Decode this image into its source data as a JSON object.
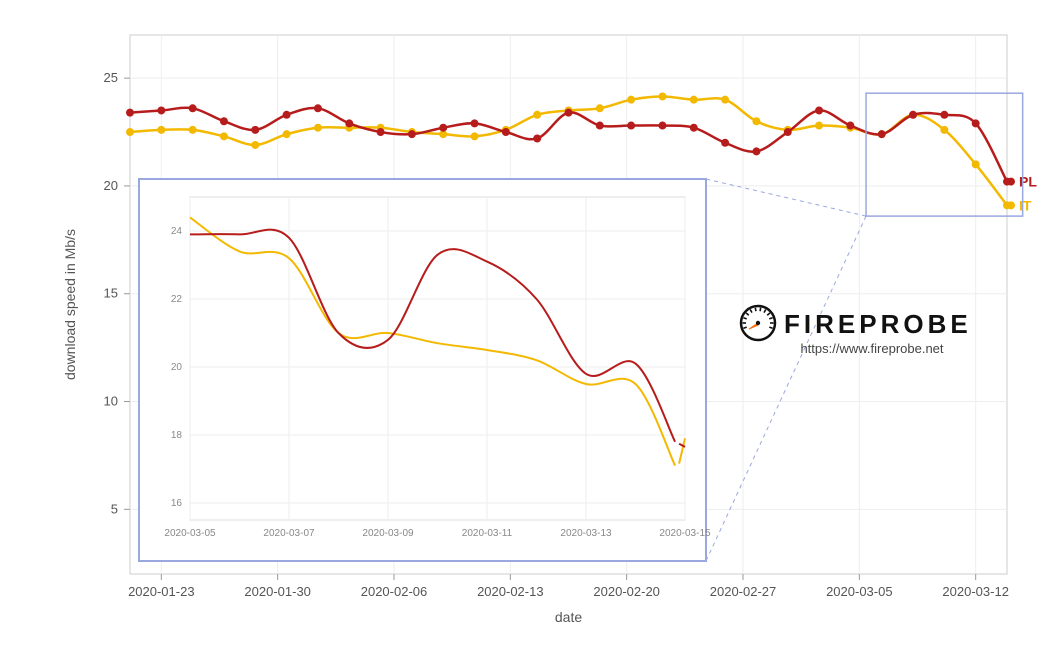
{
  "main_chart": {
    "type": "line",
    "background_color": "#ffffff",
    "plot_border_color": "#cccccc",
    "grid_color": "#eeeeee",
    "axis_text_color": "#555555",
    "ylabel": "download speed in Mb/s",
    "xlabel": "date",
    "label_fontsize": 14,
    "tick_fontsize": 13,
    "ylim": [
      2,
      27
    ],
    "yticks": [
      5,
      10,
      15,
      20,
      25
    ],
    "x_categories": [
      "2020-01-23",
      "2020-01-30",
      "2020-02-06",
      "2020-02-13",
      "2020-02-20",
      "2020-02-27",
      "2020-03-05",
      "2020-03-12"
    ],
    "x_index_range": [
      0,
      28
    ],
    "series": {
      "PL": {
        "label": "PL",
        "color": "#b71c1c",
        "marker": "circle",
        "marker_size": 4,
        "line_width": 2.5,
        "x": [
          0,
          1,
          2,
          3,
          4,
          5,
          6,
          7,
          8,
          9,
          10,
          11,
          12,
          13,
          14,
          15,
          16,
          17,
          18,
          19,
          20,
          21,
          22,
          23,
          24,
          25,
          26,
          27,
          28
        ],
        "y": [
          23.4,
          23.5,
          23.6,
          23.0,
          22.6,
          23.3,
          23.6,
          22.9,
          22.5,
          22.4,
          22.7,
          22.9,
          22.5,
          22.2,
          23.4,
          22.8,
          22.8,
          22.8,
          22.7,
          22.0,
          21.6,
          22.5,
          23.5,
          22.8,
          22.4,
          23.3,
          23.3,
          22.9,
          20.2
        ]
      },
      "IT": {
        "label": "IT",
        "color": "#f3b900",
        "marker": "circle",
        "marker_size": 4,
        "line_width": 2.5,
        "x": [
          0,
          1,
          2,
          3,
          4,
          5,
          6,
          7,
          8,
          9,
          10,
          11,
          12,
          13,
          14,
          15,
          16,
          17,
          18,
          19,
          20,
          21,
          22,
          23,
          24,
          25,
          26,
          27,
          28
        ],
        "y": [
          22.5,
          22.6,
          22.6,
          22.3,
          21.9,
          22.4,
          22.7,
          22.7,
          22.7,
          22.5,
          22.4,
          22.3,
          22.6,
          23.3,
          23.5,
          23.6,
          24.0,
          24.15,
          24.0,
          24.0,
          23.0,
          22.6,
          22.8,
          22.7,
          22.4,
          23.3,
          22.6,
          21.0,
          19.1
        ]
      }
    },
    "legend": [
      {
        "key": "PL",
        "label": "PL",
        "color": "#b71c1c"
      },
      {
        "key": "IT",
        "label": "IT",
        "color": "#f3b900"
      }
    ]
  },
  "zoom_source_rect": {
    "border_color": "#9aa8e0",
    "x_start_index": 23.5,
    "x_end_index": 28.5,
    "y_min": 18.6,
    "y_max": 24.3
  },
  "inset_chart": {
    "type": "line",
    "border_color": "#9aa8e0",
    "background_color": "#ffffff",
    "grid_color": "#eeeeee",
    "tick_color": "#888888",
    "tick_fontsize": 10,
    "ylim": [
      15.5,
      25
    ],
    "yticks": [
      16,
      18,
      20,
      22,
      24
    ],
    "x_categories": [
      "2020-03-05",
      "2020-03-07",
      "2020-03-09",
      "2020-03-11",
      "2020-03-13",
      "2020-03-15"
    ],
    "x_index_range": [
      0,
      10
    ],
    "series": {
      "PL": {
        "color": "#b71c1c",
        "line_width": 2,
        "x": [
          0,
          1,
          2,
          3,
          4,
          5,
          6,
          7,
          8,
          9,
          9.8
        ],
        "y": [
          23.9,
          23.9,
          23.8,
          21.0,
          20.8,
          23.3,
          23.1,
          22.0,
          19.8,
          20.1,
          17.8
        ],
        "last_tick": {
          "x": 10.0,
          "y": 17.65
        }
      },
      "IT": {
        "color": "#f3b900",
        "line_width": 2,
        "x": [
          0,
          1,
          2,
          3,
          4,
          5,
          6,
          7,
          8,
          9,
          9.8
        ],
        "y": [
          24.4,
          23.4,
          23.2,
          21.0,
          21.0,
          20.7,
          20.5,
          20.2,
          19.5,
          19.5,
          17.1
        ],
        "last_tick": {
          "x": 10.0,
          "y": 17.9
        }
      }
    }
  },
  "brand": {
    "name": "FIREPROBE",
    "url": "https://www.fireprobe.net",
    "text_color": "#111111",
    "accent_color": "#ff6a00"
  }
}
